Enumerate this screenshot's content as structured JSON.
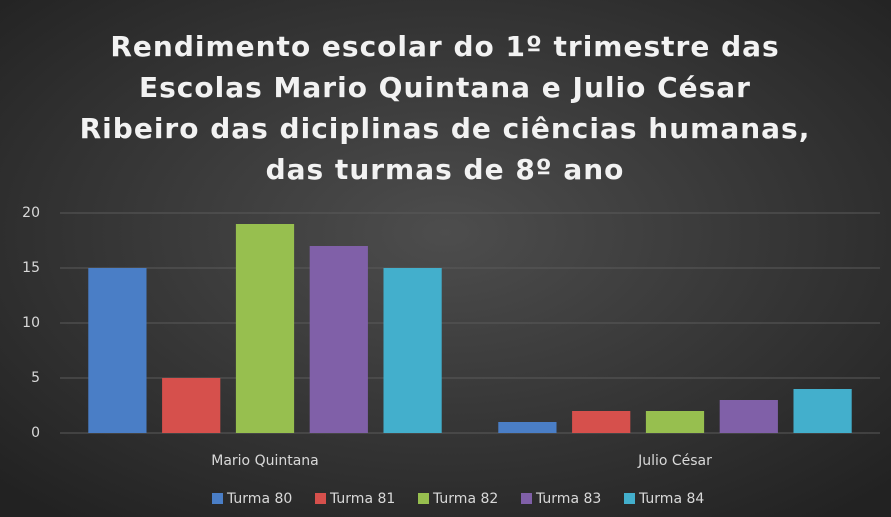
{
  "chart_data": {
    "type": "bar",
    "title": [
      "Rendimento escolar do 1º trimestre  das",
      "Escolas Mario Quintana e Julio César",
      "Ribeiro das diciplinas de ciências humanas,",
      "das turmas de 8º ano"
    ],
    "categories": [
      "Mario Quintana",
      "Julio César"
    ],
    "series": [
      {
        "name": "Turma 80",
        "color": "#4a7ec6",
        "values": [
          15,
          1
        ]
      },
      {
        "name": "Turma 81",
        "color": "#d6504c",
        "values": [
          5,
          2
        ]
      },
      {
        "name": "Turma 82",
        "color": "#97bf4f",
        "values": [
          19,
          2
        ]
      },
      {
        "name": "Turma 83",
        "color": "#8060a8",
        "values": [
          17,
          3
        ]
      },
      {
        "name": "Turma 84",
        "color": "#43afcc",
        "values": [
          15,
          4
        ]
      }
    ],
    "ylim": [
      0,
      20
    ],
    "yticks": [
      0,
      5,
      10,
      15,
      20
    ],
    "grid": true,
    "legend": "bottom"
  }
}
